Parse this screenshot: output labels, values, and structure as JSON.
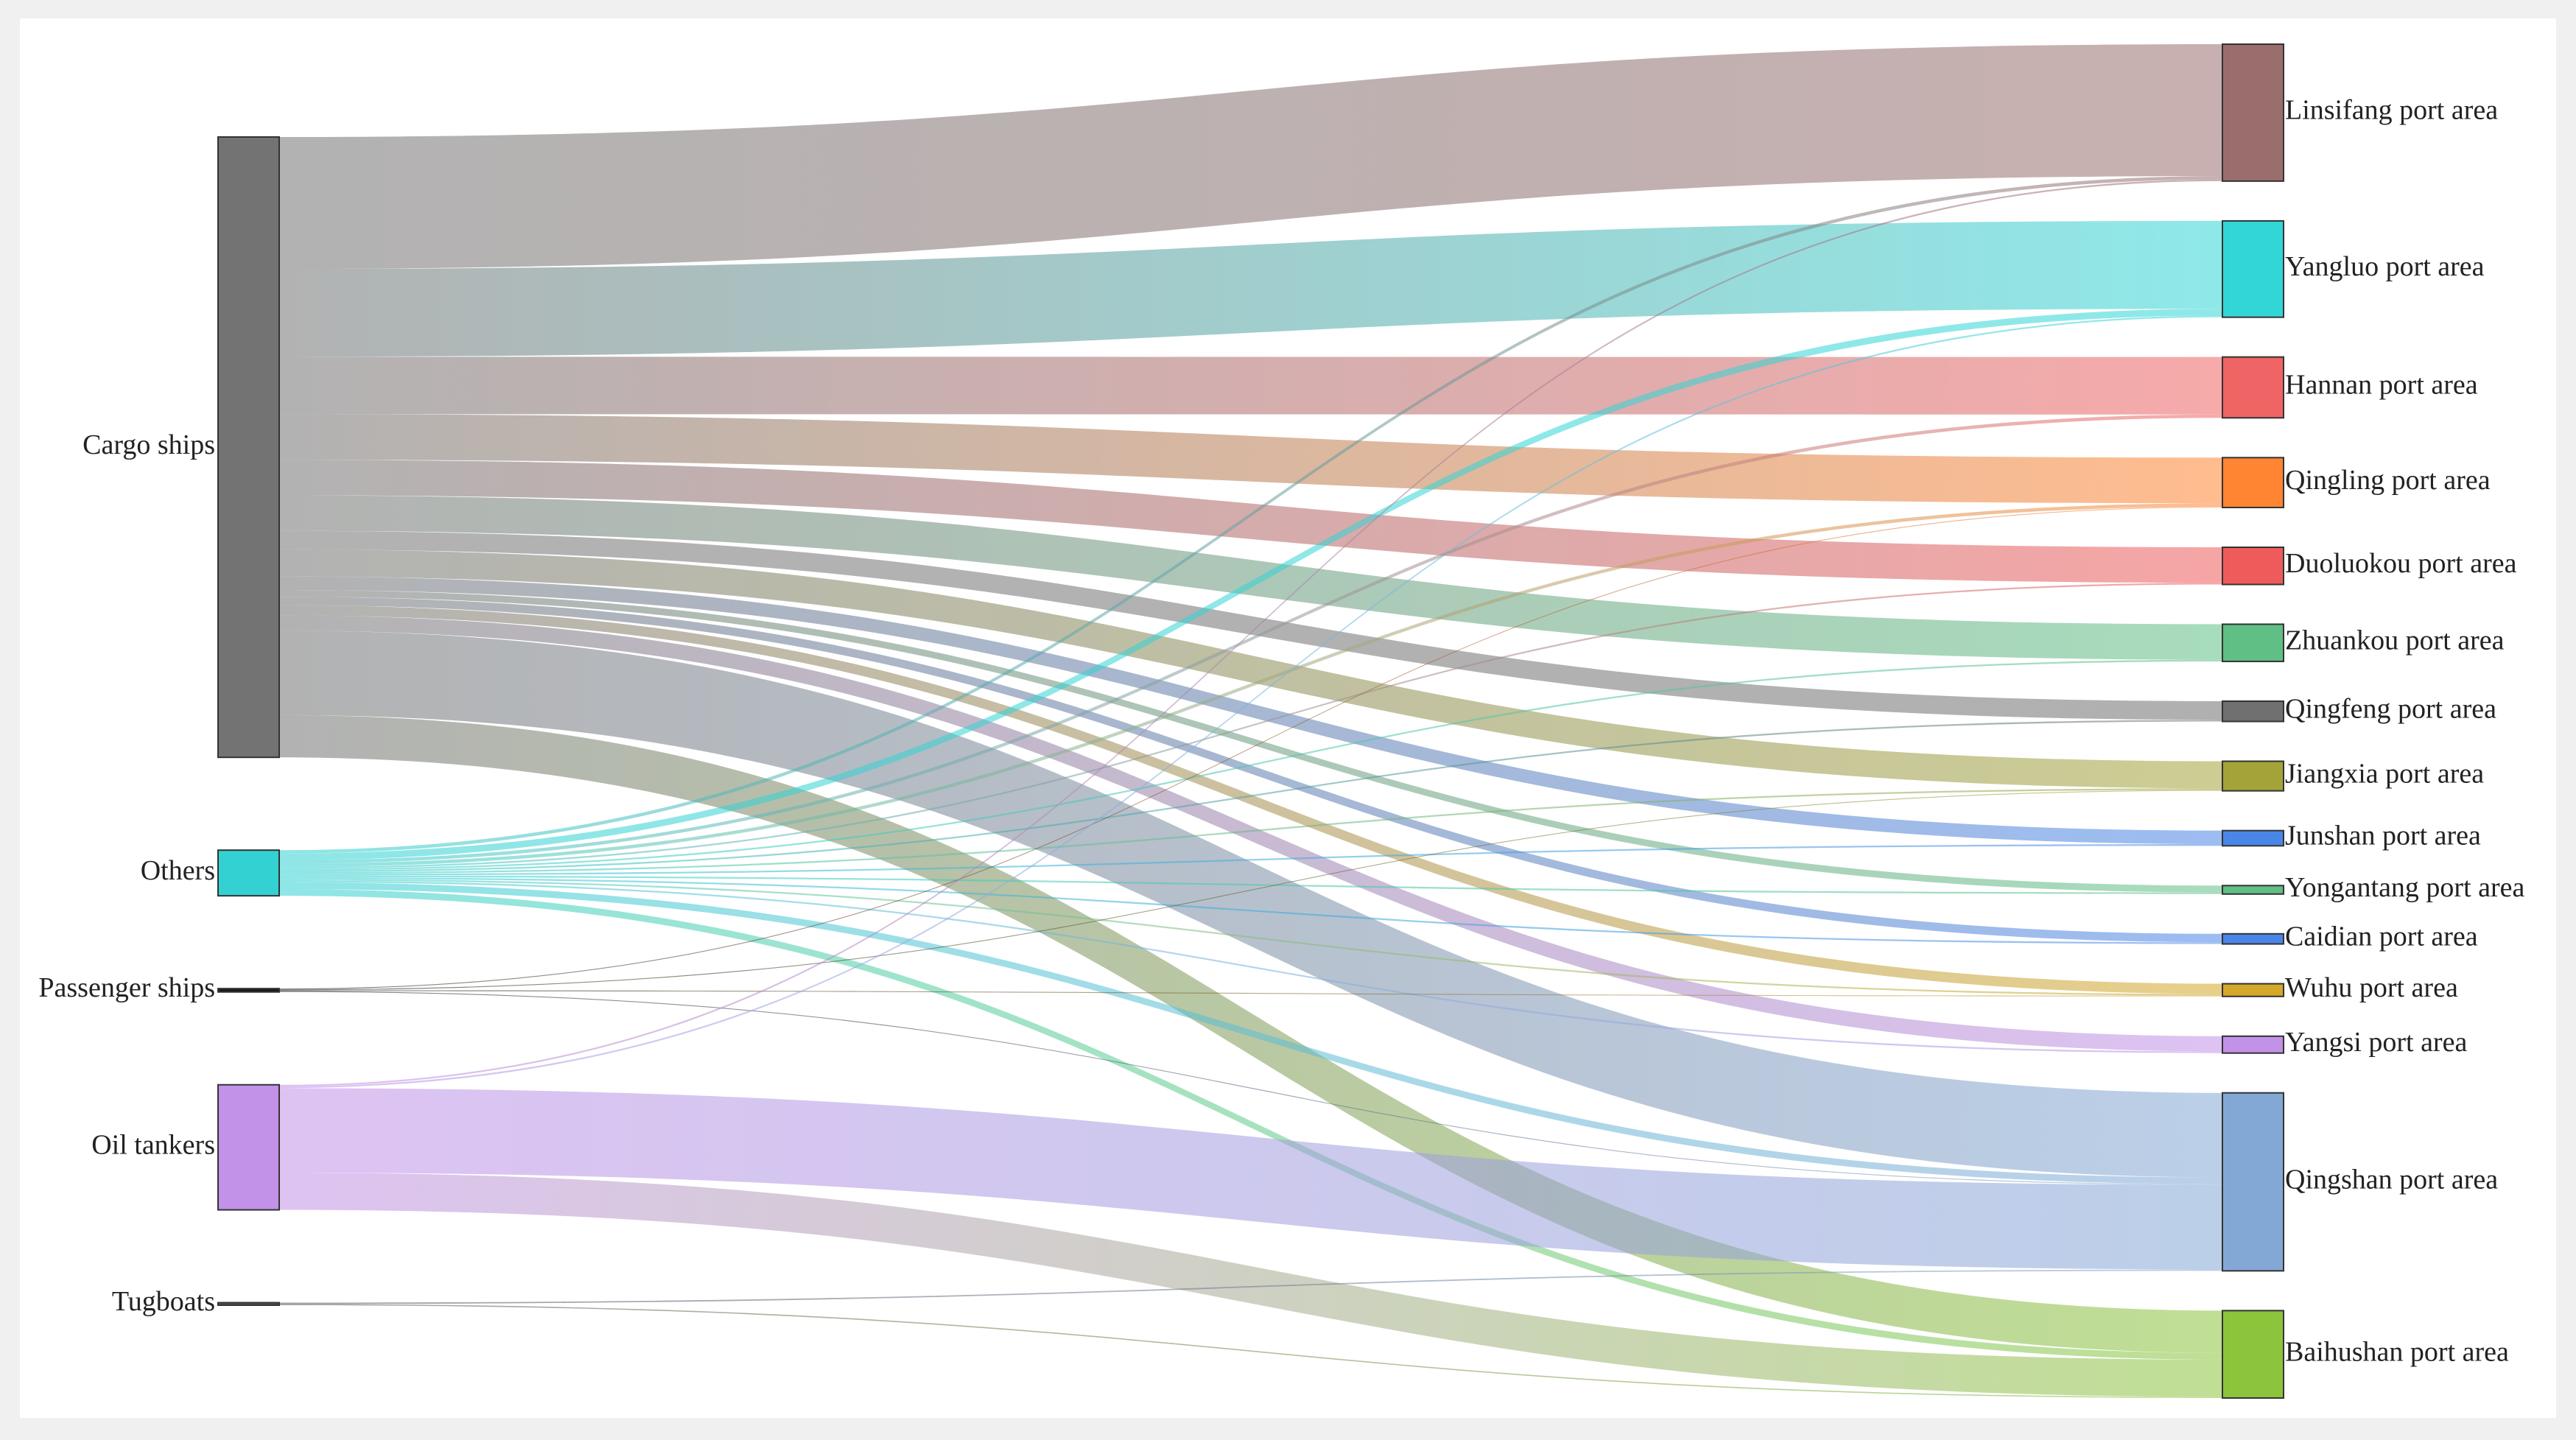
{
  "chart_data": {
    "type": "sankey",
    "nodes": [
      {
        "name": "Cargo ships",
        "color": "#737373",
        "column": 0
      },
      {
        "name": "Others",
        "color": "#33d1d1",
        "column": 0
      },
      {
        "name": "Passenger ships",
        "color": "#1a1a1a",
        "column": 0
      },
      {
        "name": "Oil tankers",
        "color": "#c291e8",
        "column": 0
      },
      {
        "name": "Tugboats",
        "color": "#555555",
        "column": 0
      },
      {
        "name": "Linsifang port area",
        "color": "#9b6e6e",
        "column": 1
      },
      {
        "name": "Yangluo port area",
        "color": "#33d6d6",
        "column": 1
      },
      {
        "name": "Hannan port area",
        "color": "#ef6464",
        "column": 1
      },
      {
        "name": "Qingling port area",
        "color": "#ff8533",
        "column": 1
      },
      {
        "name": "Duoluokou port area",
        "color": "#ef5b5b",
        "column": 1
      },
      {
        "name": "Zhuankou port area",
        "color": "#5fbf85",
        "column": 1
      },
      {
        "name": "Qingfeng port area",
        "color": "#707070",
        "column": 1
      },
      {
        "name": "Jiangxia port area",
        "color": "#a3a33a",
        "column": 1
      },
      {
        "name": "Junshan port area",
        "color": "#4a86e8",
        "column": 1
      },
      {
        "name": "Yongantang port area",
        "color": "#5fbf85",
        "column": 1
      },
      {
        "name": "Caidian port area",
        "color": "#4a86e8",
        "column": 1
      },
      {
        "name": "Wuhu port area",
        "color": "#d4a82a",
        "column": 1
      },
      {
        "name": "Yangsi port area",
        "color": "#c291e8",
        "column": 1
      },
      {
        "name": "Qingshan port area",
        "color": "#84a8d6",
        "column": 1
      },
      {
        "name": "Baihushan port area",
        "color": "#8cc43c",
        "column": 1
      }
    ],
    "links": [
      {
        "source": 0,
        "target": 5,
        "value": 78
      },
      {
        "source": 0,
        "target": 6,
        "value": 52
      },
      {
        "source": 0,
        "target": 7,
        "value": 34
      },
      {
        "source": 0,
        "target": 8,
        "value": 27
      },
      {
        "source": 0,
        "target": 9,
        "value": 21
      },
      {
        "source": 0,
        "target": 10,
        "value": 21
      },
      {
        "source": 0,
        "target": 11,
        "value": 11
      },
      {
        "source": 0,
        "target": 12,
        "value": 16
      },
      {
        "source": 0,
        "target": 13,
        "value": 8
      },
      {
        "source": 0,
        "target": 14,
        "value": 4
      },
      {
        "source": 0,
        "target": 15,
        "value": 5
      },
      {
        "source": 0,
        "target": 16,
        "value": 6
      },
      {
        "source": 0,
        "target": 17,
        "value": 9
      },
      {
        "source": 0,
        "target": 18,
        "value": 50
      },
      {
        "source": 0,
        "target": 19,
        "value": 25
      },
      {
        "source": 1,
        "target": 5,
        "value": 2
      },
      {
        "source": 1,
        "target": 6,
        "value": 4
      },
      {
        "source": 1,
        "target": 7,
        "value": 2
      },
      {
        "source": 1,
        "target": 8,
        "value": 2
      },
      {
        "source": 1,
        "target": 9,
        "value": 1
      },
      {
        "source": 1,
        "target": 10,
        "value": 1
      },
      {
        "source": 1,
        "target": 11,
        "value": 1
      },
      {
        "source": 1,
        "target": 12,
        "value": 1
      },
      {
        "source": 1,
        "target": 13,
        "value": 1
      },
      {
        "source": 1,
        "target": 14,
        "value": 1
      },
      {
        "source": 1,
        "target": 15,
        "value": 1
      },
      {
        "source": 1,
        "target": 16,
        "value": 1
      },
      {
        "source": 1,
        "target": 17,
        "value": 1
      },
      {
        "source": 1,
        "target": 18,
        "value": 4
      },
      {
        "source": 1,
        "target": 19,
        "value": 4
      },
      {
        "source": 2,
        "target": 8,
        "value": 0.5
      },
      {
        "source": 2,
        "target": 12,
        "value": 0.5
      },
      {
        "source": 2,
        "target": 16,
        "value": 0.5
      },
      {
        "source": 2,
        "target": 18,
        "value": 0.5
      },
      {
        "source": 3,
        "target": 5,
        "value": 1
      },
      {
        "source": 3,
        "target": 6,
        "value": 1
      },
      {
        "source": 3,
        "target": 18,
        "value": 50
      },
      {
        "source": 3,
        "target": 19,
        "value": 22
      },
      {
        "source": 4,
        "target": 18,
        "value": 0.8
      },
      {
        "source": 4,
        "target": 19,
        "value": 0.7
      }
    ]
  }
}
